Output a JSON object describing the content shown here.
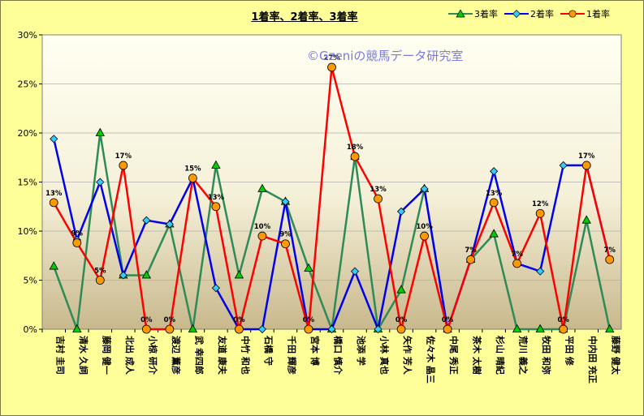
{
  "chart_data": {
    "type": "line",
    "title": "1着率、2着率、3着率",
    "watermark": "©Gzeniの競馬データ研究室",
    "ylim": [
      0,
      30
    ],
    "yticks": [
      "0%",
      "5%",
      "10%",
      "15%",
      "20%",
      "25%",
      "30%"
    ],
    "categories": [
      "吉村 圭司",
      "清水 久詞",
      "藤岡 健一",
      "北出 成人",
      "小椋 研介",
      "渡辺 薫彦",
      "武 幸四郎",
      "友道 康夫",
      "中竹 和也",
      "石橋 守",
      "千田 輝彦",
      "宮本 博",
      "橋口 慎介",
      "池添 学",
      "小林 真也",
      "矢作 芳人",
      "佐々木 晶三",
      "中尾 秀正",
      "茶木 太樹",
      "杉山 晴紀",
      "荒川 義之",
      "牧田 和弥",
      "平田 修",
      "中内田 充正",
      "藤野 健太"
    ],
    "series": [
      {
        "name": "3着率",
        "color": "#2E8B57",
        "marker": "triangle",
        "marker_color": "#00CC00",
        "values": [
          6.4,
          0,
          20.0,
          5.5,
          5.5,
          10.7,
          0,
          16.7,
          5.5,
          14.3,
          13.0,
          6.2,
          0,
          17.6,
          0,
          4.0,
          14.3,
          0,
          7.1,
          9.7,
          0,
          0,
          0,
          11.1,
          0
        ]
      },
      {
        "name": "2着率",
        "color": "#0000EE",
        "marker": "diamond",
        "marker_color": "#33CCFF",
        "values": [
          19.4,
          9.1,
          15.0,
          5.5,
          11.1,
          10.7,
          15.4,
          4.2,
          0,
          0,
          13.0,
          0,
          0,
          5.9,
          0,
          12.0,
          14.3,
          0,
          7.1,
          16.1,
          6.7,
          5.9,
          16.7,
          16.7,
          7.1
        ]
      },
      {
        "name": "1着率",
        "color": "#FF0000",
        "marker": "circle",
        "marker_color": "#FF9900",
        "values": [
          12.9,
          8.8,
          5.0,
          16.7,
          0,
          0,
          15.4,
          12.5,
          0,
          9.5,
          8.7,
          0,
          26.7,
          17.6,
          13.3,
          0,
          9.5,
          0,
          7.1,
          12.9,
          6.7,
          11.8,
          0,
          16.7,
          7.1
        ],
        "data_labels": [
          "13%",
          "9%",
          "5%",
          "17%",
          "0%",
          "0%",
          "15%",
          "13%",
          "0%",
          "10%",
          "9%",
          "0%",
          "27%",
          "18%",
          "13%",
          "0%",
          "10%",
          "0%",
          "7%",
          "13%",
          "7%",
          "12%",
          "0%",
          "17%",
          "7%"
        ]
      }
    ]
  }
}
